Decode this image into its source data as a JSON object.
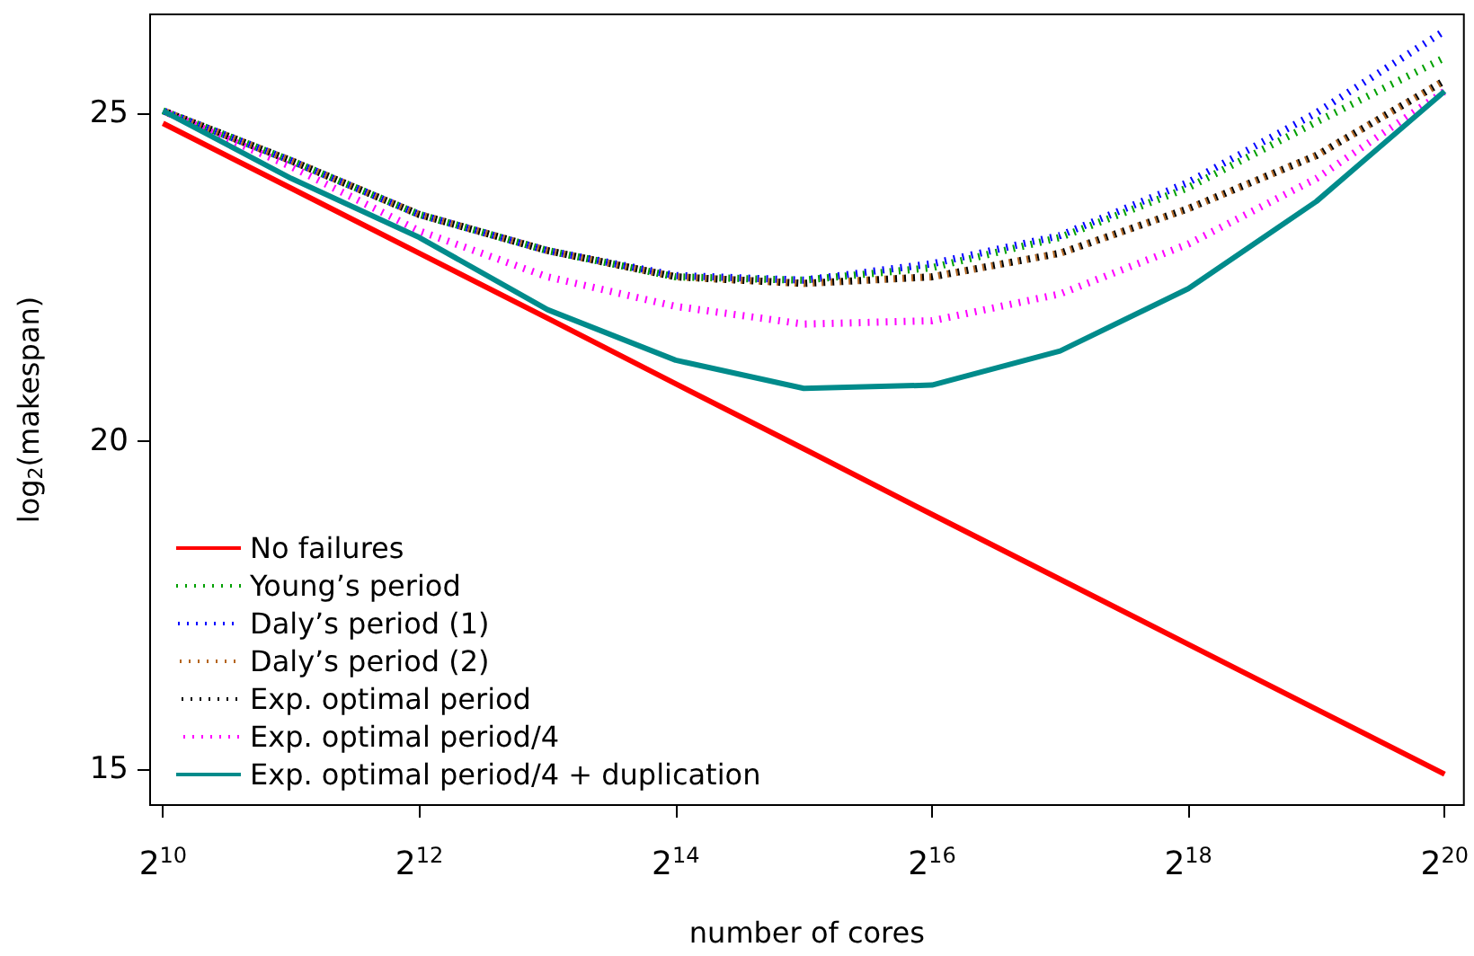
{
  "chart_data": {
    "type": "line",
    "xlabel": "number of cores",
    "ylabel": "log$_{2}$(makespan)",
    "x": [
      1024,
      2048,
      4096,
      8192,
      16384,
      32768,
      65536,
      131072,
      262144,
      524288,
      1048576
    ],
    "xlim": [
      955,
      1163500
    ],
    "ylim": [
      14.45,
      26.5
    ],
    "log": "x",
    "xticks": [
      {
        "value": 1024,
        "label": "2$^{10}$"
      },
      {
        "value": 4096,
        "label": "2$^{12}$"
      },
      {
        "value": 16384,
        "label": "2$^{14}$"
      },
      {
        "value": 65536,
        "label": "2$^{16}$"
      },
      {
        "value": 262144,
        "label": "2$^{18}$"
      },
      {
        "value": 1048576,
        "label": "2$^{20}$"
      }
    ],
    "yticks": [
      15,
      20,
      25
    ],
    "grid": false,
    "legend": "bottom left",
    "marker": "none",
    "series": [
      {
        "name": "No failures",
        "color": "#ff0000",
        "line_style": "solid",
        "values": [
          24.84,
          23.85,
          22.86,
          21.87,
          20.87,
          19.88,
          18.88,
          17.89,
          16.9,
          15.91,
          14.92
        ]
      },
      {
        "name": "Young’s period",
        "color": "#00a000",
        "line_style": "dotted",
        "values": [
          25.03,
          24.27,
          23.45,
          22.9,
          22.5,
          22.45,
          22.64,
          23.1,
          23.86,
          24.86,
          25.84
        ]
      },
      {
        "name": "Daly’s period (1)",
        "color": "#0000ff",
        "line_style": "dotted",
        "values": [
          25.03,
          24.27,
          23.45,
          22.9,
          22.52,
          22.45,
          22.7,
          23.13,
          23.94,
          25.0,
          26.25
        ]
      },
      {
        "name": "Daly’s period (2)",
        "color": "#b5651d",
        "line_style": "dotted",
        "values": [
          25.03,
          24.27,
          23.45,
          22.9,
          22.5,
          22.4,
          22.5,
          22.86,
          23.54,
          24.35,
          25.49
        ]
      },
      {
        "name": "Exp. optimal period",
        "color": "#000000",
        "line_style": "dotted",
        "values": [
          25.03,
          24.27,
          23.45,
          22.9,
          22.5,
          22.4,
          22.5,
          22.86,
          23.54,
          24.35,
          25.49
        ]
      },
      {
        "name": "Exp. optimal period/4",
        "color": "#ff00ff",
        "line_style": "dotted",
        "values": [
          25.03,
          24.18,
          23.2,
          22.5,
          22.05,
          21.78,
          21.83,
          22.24,
          23.0,
          24.0,
          25.33
        ]
      },
      {
        "name": "Exp. optimal period/4 + duplication",
        "color": "#008b8b",
        "line_style": "solid",
        "values": [
          25.03,
          24.0,
          23.1,
          22.0,
          21.23,
          20.8,
          20.85,
          21.37,
          22.32,
          23.65,
          25.33
        ]
      }
    ]
  }
}
